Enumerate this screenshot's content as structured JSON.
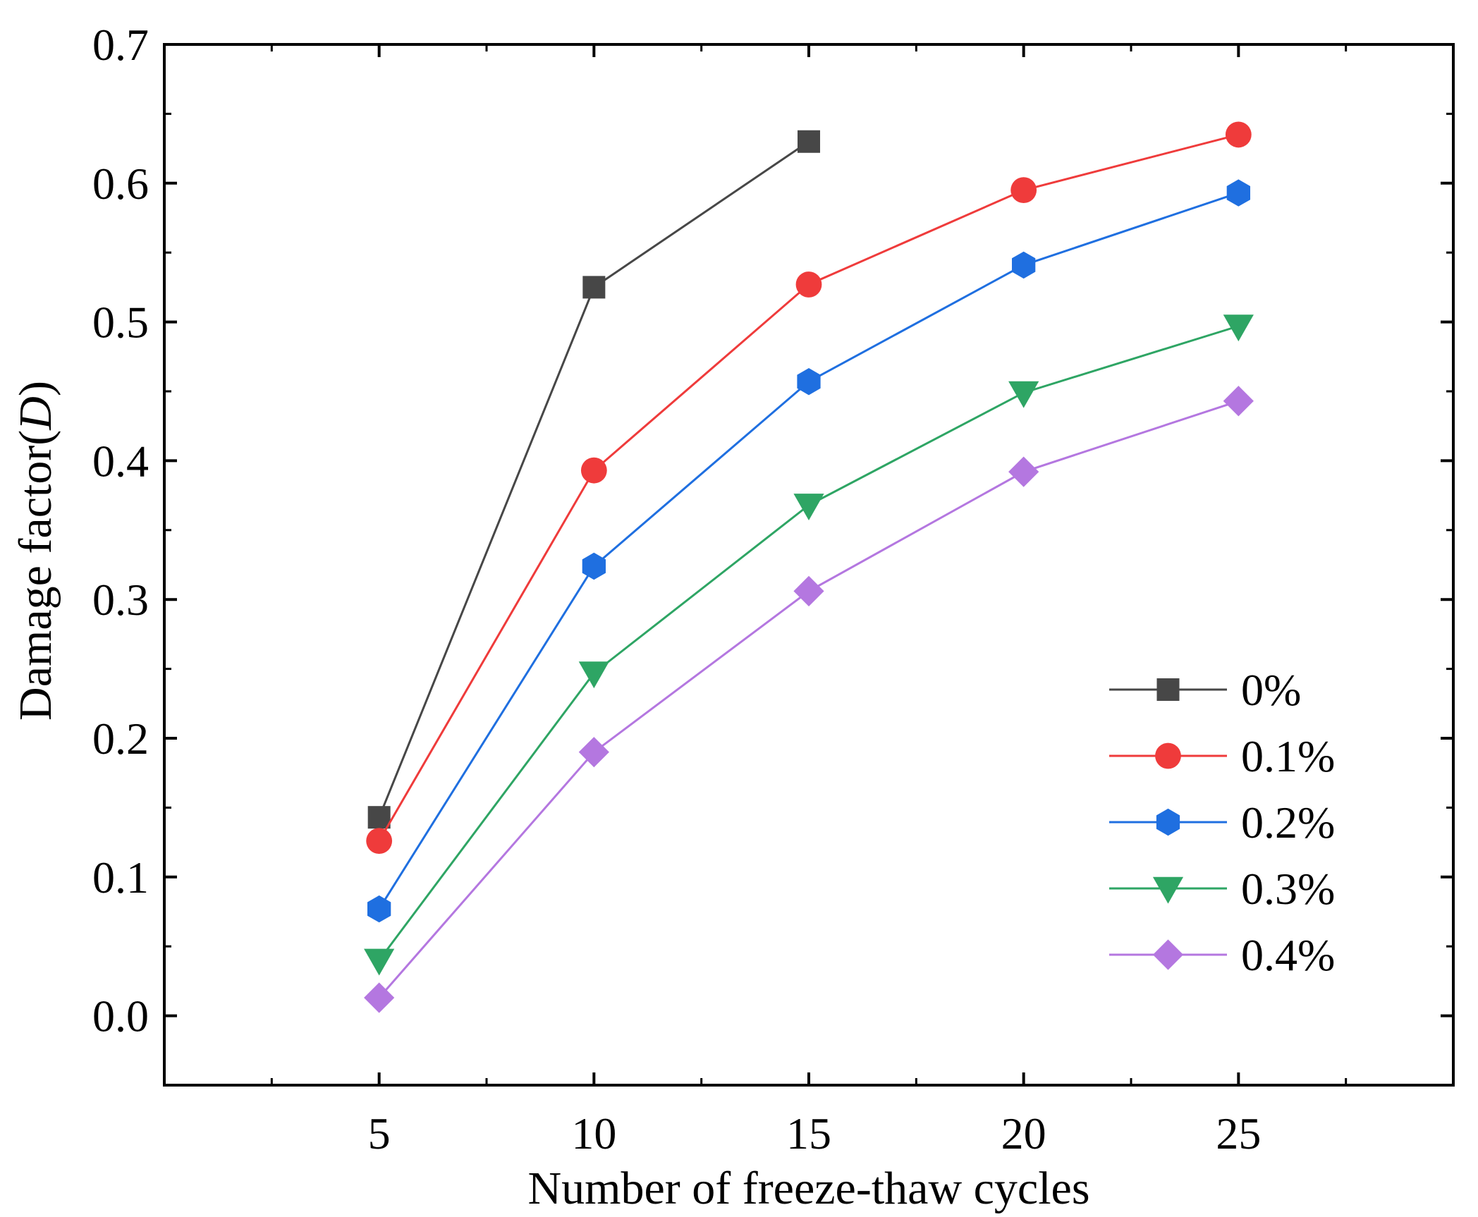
{
  "chart_data": {
    "type": "line",
    "title": "",
    "xlabel": "Number of freeze-thaw cycles",
    "ylabel": "Damage factor(",
    "ylabel_italic": "D",
    "ylabel_suffix": ")",
    "xlim": [
      0,
      30
    ],
    "ylim": [
      -0.05,
      0.7
    ],
    "x_ticks": [
      5,
      10,
      15,
      20,
      25
    ],
    "x_tick_labels": [
      "5",
      "10",
      "15",
      "20",
      "25"
    ],
    "y_ticks": [
      0.0,
      0.1,
      0.2,
      0.3,
      0.4,
      0.5,
      0.6,
      0.7
    ],
    "y_tick_labels": [
      "0.0",
      "0.1",
      "0.2",
      "0.3",
      "0.4",
      "0.5",
      "0.6",
      "0.7"
    ],
    "grid": false,
    "legend_position": "bottom-right",
    "series": [
      {
        "name": "0%",
        "color": "#474747",
        "marker": "square",
        "x": [
          5,
          10,
          15
        ],
        "values": [
          0.143,
          0.525,
          0.63
        ]
      },
      {
        "name": "0.1%",
        "color": "#ef3b3b",
        "marker": "circle",
        "x": [
          5,
          10,
          15,
          20,
          25
        ],
        "values": [
          0.126,
          0.393,
          0.527,
          0.595,
          0.635
        ]
      },
      {
        "name": "0.2%",
        "color": "#1f6fe0",
        "marker": "hexagon",
        "x": [
          5,
          10,
          15,
          20,
          25
        ],
        "values": [
          0.077,
          0.324,
          0.457,
          0.541,
          0.593
        ]
      },
      {
        "name": "0.3%",
        "color": "#2ea564",
        "marker": "triangle-down",
        "x": [
          5,
          10,
          15,
          20,
          25
        ],
        "values": [
          0.04,
          0.247,
          0.368,
          0.449,
          0.497
        ]
      },
      {
        "name": "0.4%",
        "color": "#b477e0",
        "marker": "diamond",
        "x": [
          5,
          10,
          15,
          20,
          25
        ],
        "values": [
          0.013,
          0.19,
          0.306,
          0.392,
          0.443
        ]
      }
    ]
  }
}
